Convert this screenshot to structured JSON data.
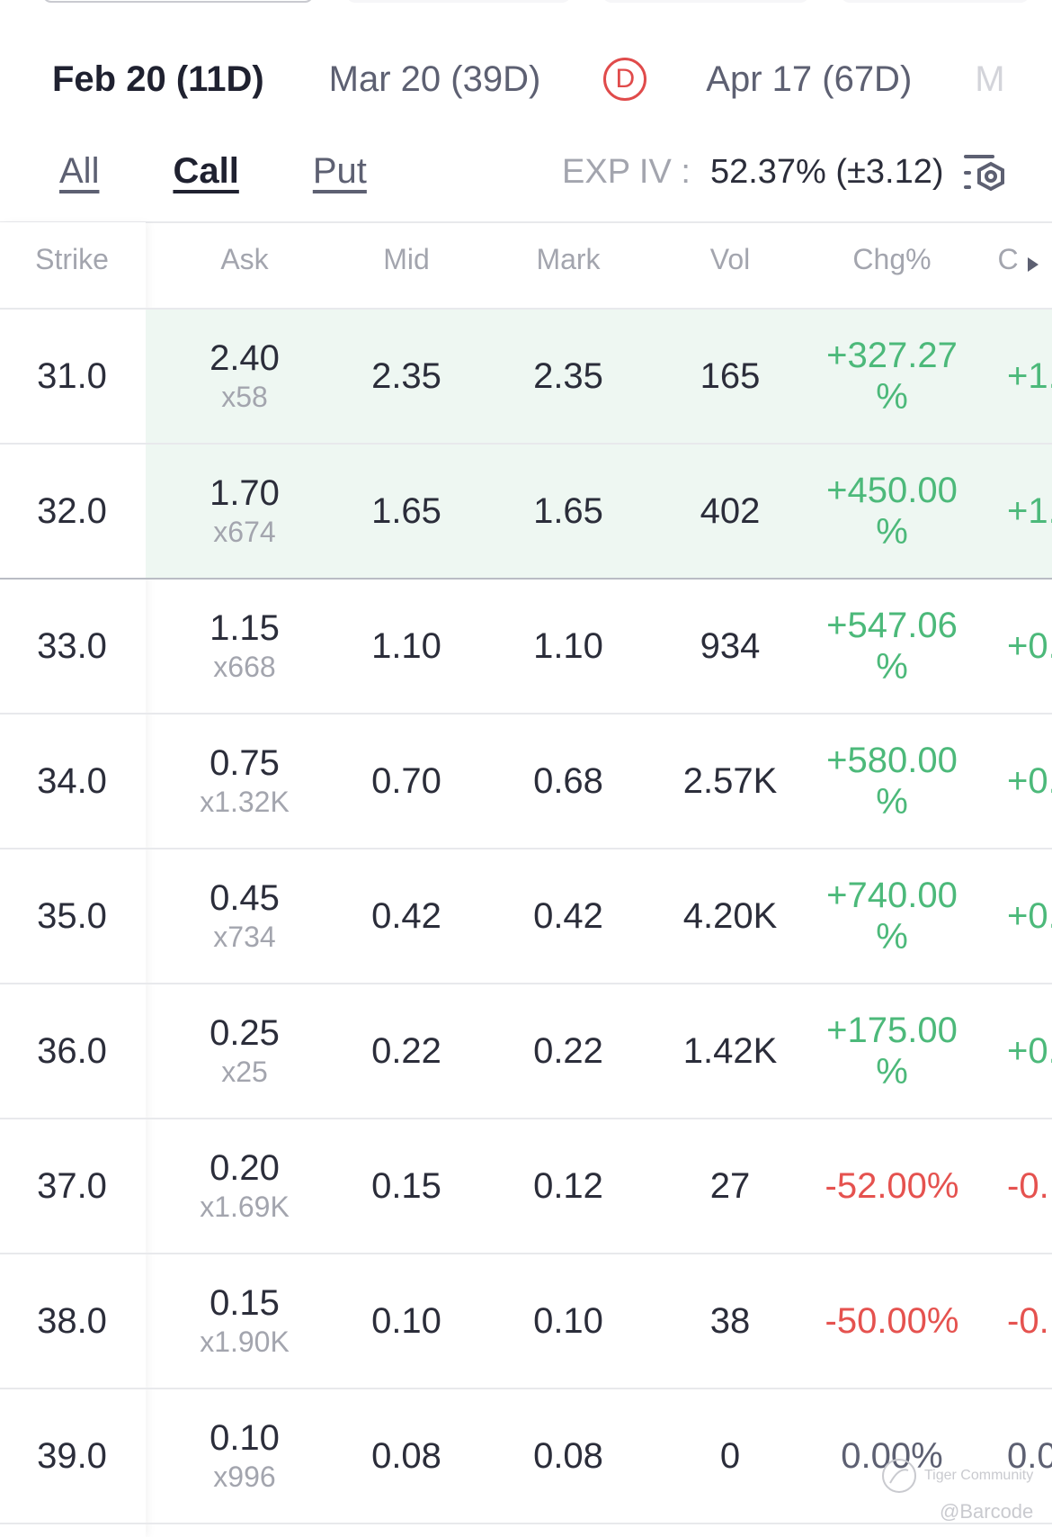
{
  "expiries": [
    {
      "label": "Feb 20 (11D)",
      "active": true
    },
    {
      "label": "Mar 20 (39D)"
    },
    {
      "badge": "D"
    },
    {
      "label": "Apr 17 (67D)"
    },
    {
      "label": "M",
      "clipped": true
    }
  ],
  "filters": {
    "all": "All",
    "call": "Call",
    "put": "Put",
    "active": "Call"
  },
  "exp_iv": {
    "label": "EXP IV :",
    "value": "52.37% (±3.12)"
  },
  "headers": {
    "strike": "Strike",
    "ask": "Ask",
    "mid": "Mid",
    "mark": "Mark",
    "vol": "Vol",
    "chg": "Chg%",
    "next": "C"
  },
  "rows": [
    {
      "strike": "31.0",
      "ask": "2.40",
      "ask_size": "x58",
      "mid": "2.35",
      "mark": "2.35",
      "vol": "165",
      "chg": "+327.27",
      "chg_unit": "%",
      "next": "+1.",
      "dir": "green",
      "itm": true
    },
    {
      "strike": "32.0",
      "ask": "1.70",
      "ask_size": "x674",
      "mid": "1.65",
      "mark": "1.65",
      "vol": "402",
      "chg": "+450.00",
      "chg_unit": "%",
      "next": "+1.",
      "dir": "green",
      "itm": true
    },
    {
      "strike": "33.0",
      "ask": "1.15",
      "ask_size": "x668",
      "mid": "1.10",
      "mark": "1.10",
      "vol": "934",
      "chg": "+547.06",
      "chg_unit": "%",
      "next": "+0.",
      "dir": "green"
    },
    {
      "strike": "34.0",
      "ask": "0.75",
      "ask_size": "x1.32K",
      "mid": "0.70",
      "mark": "0.68",
      "vol": "2.57K",
      "chg": "+580.00",
      "chg_unit": "%",
      "next": "+0.",
      "dir": "green"
    },
    {
      "strike": "35.0",
      "ask": "0.45",
      "ask_size": "x734",
      "mid": "0.42",
      "mark": "0.42",
      "vol": "4.20K",
      "chg": "+740.00",
      "chg_unit": "%",
      "next": "+0.",
      "dir": "green"
    },
    {
      "strike": "36.0",
      "ask": "0.25",
      "ask_size": "x25",
      "mid": "0.22",
      "mark": "0.22",
      "vol": "1.42K",
      "chg": "+175.00",
      "chg_unit": "%",
      "next": "+0.",
      "dir": "green"
    },
    {
      "strike": "37.0",
      "ask": "0.20",
      "ask_size": "x1.69K",
      "mid": "0.15",
      "mark": "0.12",
      "vol": "27",
      "chg": "-52.00%",
      "chg_unit": "",
      "next": "-0.",
      "dir": "red"
    },
    {
      "strike": "38.0",
      "ask": "0.15",
      "ask_size": "x1.90K",
      "mid": "0.10",
      "mark": "0.10",
      "vol": "38",
      "chg": "-50.00%",
      "chg_unit": "",
      "next": "-0.",
      "dir": "red"
    },
    {
      "strike": "39.0",
      "ask": "0.10",
      "ask_size": "x996",
      "mid": "0.08",
      "mark": "0.08",
      "vol": "0",
      "chg": "0.00%",
      "chg_unit": "",
      "next": "0.0",
      "dir": "neutral"
    }
  ],
  "watermark": {
    "brand": "Tiger Community",
    "user": "@Barcode"
  },
  "colors": {
    "up": "#4cb97a",
    "down": "#e5524f",
    "itm_bg": "#eef7f2",
    "badge": "#e04b4b"
  }
}
